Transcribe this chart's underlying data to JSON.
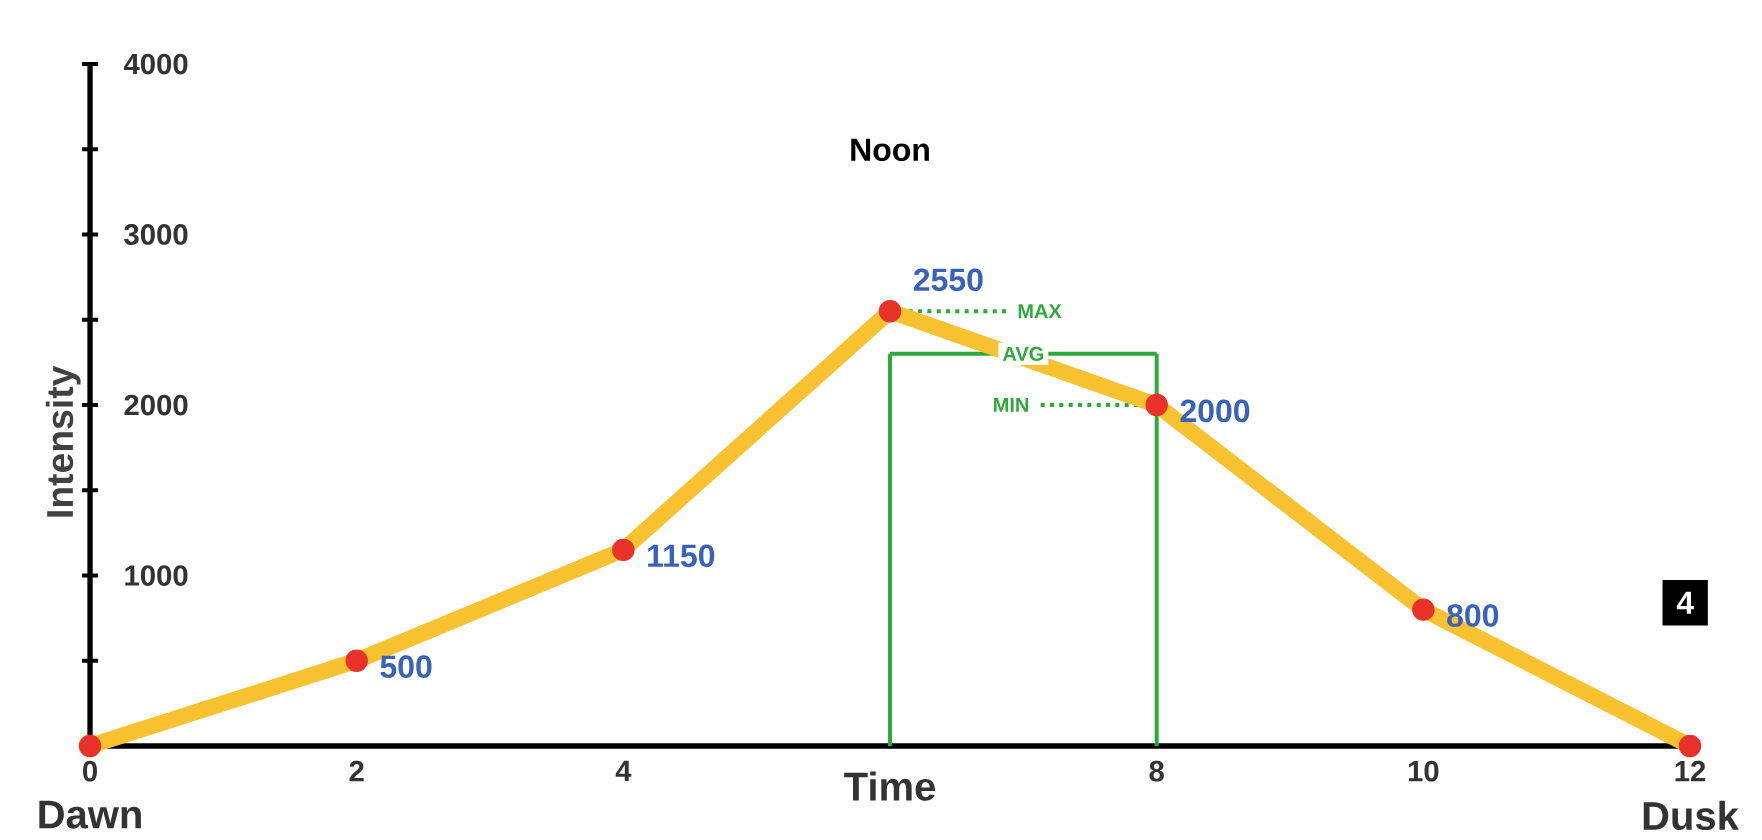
{
  "chart_data": {
    "type": "line",
    "xlabel": "Time",
    "ylabel": "Intensity",
    "x": [
      0,
      2,
      4,
      6,
      8,
      10,
      12
    ],
    "values": [
      0,
      500,
      1150,
      2550,
      2000,
      800,
      0
    ],
    "value_labels": [
      null,
      "500",
      "1150",
      "2550",
      "2000",
      "800",
      null
    ],
    "color": "#f7c130",
    "colors": [
      "#e8322a",
      "#e8322a",
      "#e8322a",
      "#e8322a",
      "#e8322a",
      "#e8322a",
      "#e8322a"
    ],
    "marker": "circle",
    "line_style": "solid",
    "xlim": [
      0,
      12
    ],
    "xticks": [
      0,
      2,
      4,
      8,
      10,
      12
    ],
    "ylim": [
      0,
      4000
    ],
    "yticks": [
      {
        "value": 500,
        "label": null
      },
      1000,
      {
        "value": 1500,
        "label": null
      },
      2000,
      {
        "value": 2500,
        "label": null
      },
      3000,
      {
        "value": 3500,
        "label": null
      },
      4000
    ],
    "ref_lines": [
      {
        "axis": "x",
        "value": 6,
        "color": "#2eaa3c",
        "line_style": "solid"
      },
      {
        "axis": "x",
        "value": 8,
        "color": "#2eaa3c",
        "line_style": "solid"
      },
      {
        "axis": "y",
        "value": 2300,
        "label": "AVG",
        "color": "#2eaa3c",
        "line_style": "solid"
      },
      {
        "axis": "y",
        "value": 2550,
        "label": "MAX",
        "color": "#2eaa3c",
        "line_style": "dotted"
      },
      {
        "axis": "y",
        "value": 2000,
        "label": "MIN",
        "color": "#2eaa3c",
        "line_style": "dotted"
      }
    ],
    "annotations": [
      "Noon",
      {
        "text": "Dawn",
        "x": 0,
        "y": 0
      },
      {
        "text": "Dusk",
        "x": 12,
        "y": 0
      },
      "4"
    ]
  }
}
